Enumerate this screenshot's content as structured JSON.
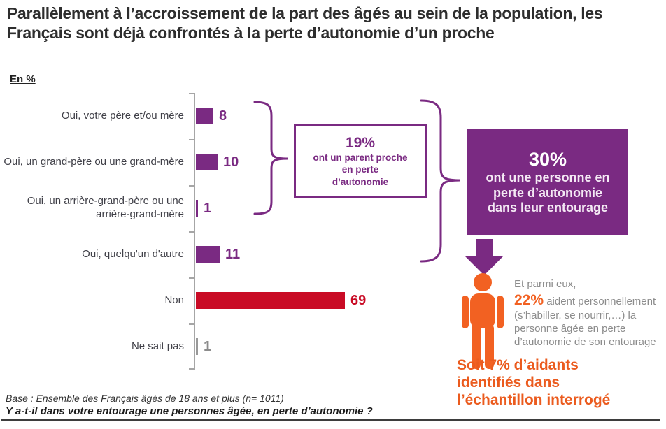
{
  "title": "Parallèlement à l’accroissement de la part des âgés au sein de la population, les Français sont déjà confrontés à la perte d’autonomie d’un proche",
  "unit_label": "En %",
  "chart_data": {
    "type": "bar",
    "orientation": "horizontal",
    "unit": "%",
    "title": "",
    "xlabel": "",
    "ylabel": "",
    "grid": false,
    "legend": false,
    "xlim": [
      0,
      75
    ],
    "categories": [
      "Oui, votre père et/ou mère",
      "Oui, un grand-père ou une grand-mère",
      "Oui, un arrière-grand-père ou une arrière-grand-mère",
      "Oui, quelqu'un d'autre",
      "Non",
      "Ne sait pas"
    ],
    "values": [
      8,
      10,
      1,
      11,
      69,
      1
    ],
    "bar_colors": [
      "#7a2a82",
      "#7a2a82",
      "#7a2a82",
      "#7a2a82",
      "#c90b25",
      "#999999"
    ],
    "value_label_colors": [
      "#7a2a82",
      "#7a2a82",
      "#7a2a82",
      "#7a2a82",
      "#c90b25",
      "#8c8c8c"
    ]
  },
  "annotations": {
    "parent_callout": {
      "headline": "19%",
      "lines": "ont un parent proche\nen perte\nd’autonomie"
    },
    "entourage_box": {
      "headline": "30%",
      "lines": "ont une personne en\nperte d’autonomie\ndans leur entourage"
    },
    "aidants": {
      "intro": "Et parmi eux,",
      "stat": "22%",
      "stat_suffix": " aident personnellement",
      "detail": "(s’habiller, se nourrir,…) la\npersonne âgée en perte\nd’autonomie de son entourage",
      "conclusion": "Soit 7% d’aidants\nidentifiés dans\nl’échantillon interrogé"
    }
  },
  "footer": {
    "base": "Base : Ensemble des Français âgés de 18 ans et plus (n= 1011)",
    "question": "Y a-t-il dans votre entourage une personnes âgée, en perte d’autonomie ?"
  },
  "colors": {
    "purple": "#7a2a82",
    "red": "#c90b25",
    "gray": "#999999",
    "orange": "#f26122",
    "orange_dark": "#eb5b1e",
    "axis": "#a6a6a6"
  }
}
